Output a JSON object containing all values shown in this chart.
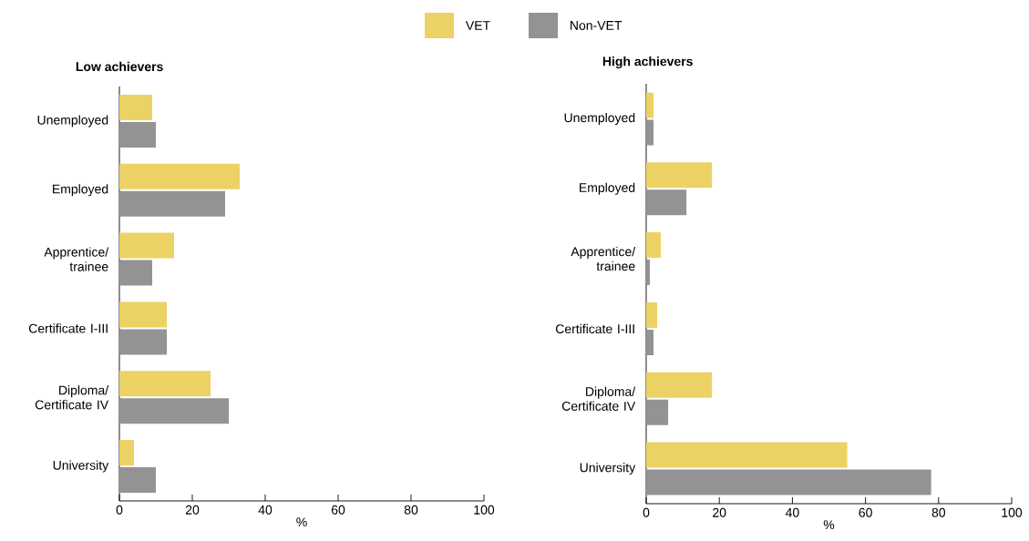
{
  "chart_data": [
    {
      "type": "bar",
      "orientation": "horizontal",
      "title": "Low achievers",
      "xlabel": "%",
      "categories": [
        "Unemployed",
        "Employed",
        "Apprentice/ trainee",
        "Certificate I-III",
        "Diploma/ Certificate IV",
        "University"
      ],
      "series": [
        {
          "name": "VET",
          "color": "#ecd264",
          "values": [
            9,
            33,
            15,
            13,
            25,
            4
          ]
        },
        {
          "name": "Non-VET",
          "color": "#939393",
          "values": [
            10,
            29,
            9,
            13,
            30,
            10
          ]
        }
      ],
      "xlim": [
        0,
        100
      ],
      "xticks": [
        0,
        20,
        40,
        60,
        80,
        100
      ],
      "legend": "top"
    },
    {
      "type": "bar",
      "orientation": "horizontal",
      "title": "High achievers",
      "xlabel": "%",
      "categories": [
        "Unemployed",
        "Employed",
        "Apprentice/ trainee",
        "Certificate I-III",
        "Diploma/ Certificate IV",
        "University"
      ],
      "series": [
        {
          "color": "#ecd264",
          "values": [
            2,
            18,
            4,
            3,
            18,
            55
          ]
        },
        {
          "color": "#939393",
          "values": [
            2,
            11,
            1,
            2,
            6,
            78
          ]
        }
      ],
      "xlim": [
        0,
        100
      ],
      "xticks": [
        0,
        20,
        40,
        60,
        80,
        100
      ]
    }
  ]
}
